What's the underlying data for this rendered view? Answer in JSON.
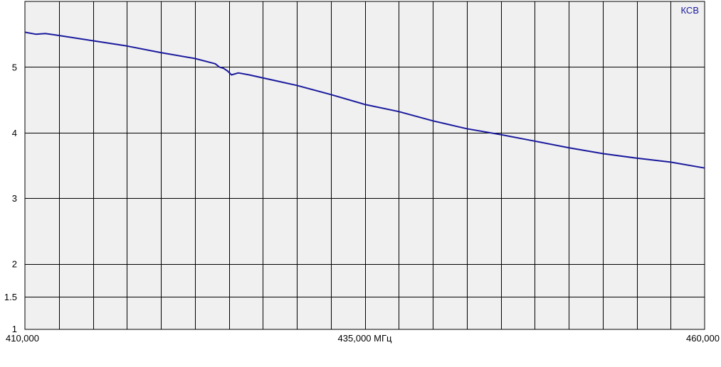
{
  "chart_data": {
    "type": "line",
    "title": "",
    "xlabel": "",
    "ylabel": "КСВ",
    "xlim": [
      410,
      460
    ],
    "ylim": [
      1,
      6
    ],
    "x_tick_labels": [
      {
        "value": 410,
        "label": "410,000"
      },
      {
        "value": 435,
        "label": "435,000 МГц"
      },
      {
        "value": 460,
        "label": "460,000"
      }
    ],
    "y_tick_labels": [
      {
        "value": 1,
        "label": "1"
      },
      {
        "value": 1.5,
        "label": "1.5"
      },
      {
        "value": 2,
        "label": "2"
      },
      {
        "value": 3,
        "label": "3"
      },
      {
        "value": 4,
        "label": "4"
      },
      {
        "value": 5,
        "label": "5"
      }
    ],
    "grid": true,
    "series": [
      {
        "color": "#1a1a9e",
        "x": [
          410,
          410.8,
          411.5,
          412.2,
          412.5,
          415,
          417.5,
          420,
          422.5,
          424,
          424.3,
          424.6,
          424.9,
          425.2,
          425.7,
          426.5,
          430,
          432.5,
          435,
          437.5,
          440,
          442.5,
          445,
          447.5,
          450,
          452.5,
          455,
          457.5,
          460
        ],
        "y": [
          5.53,
          5.5,
          5.51,
          5.49,
          5.48,
          5.4,
          5.32,
          5.22,
          5.13,
          5.05,
          5.0,
          4.98,
          4.94,
          4.88,
          4.91,
          4.88,
          4.72,
          4.58,
          4.43,
          4.32,
          4.18,
          4.06,
          3.97,
          3.87,
          3.77,
          3.68,
          3.61,
          3.55,
          3.46
        ]
      }
    ],
    "bg_color": "#f0f0f0",
    "grid_color": "#000000"
  }
}
